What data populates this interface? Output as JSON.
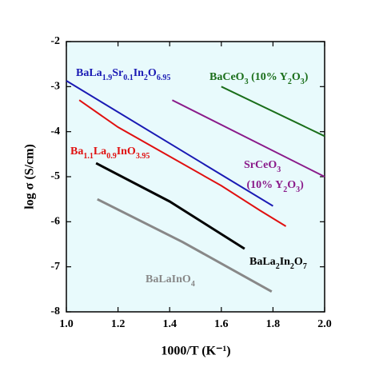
{
  "chart_data": {
    "type": "line",
    "xlabel": "1000/T (K⁻¹)",
    "ylabel": "log σ (S/cm)",
    "xlim": [
      1.0,
      2.0
    ],
    "xticks": [
      {
        "value": 1.0,
        "label": "1.0"
      },
      {
        "value": 1.2,
        "label": "1.2"
      },
      {
        "value": 1.4,
        "label": "1.4"
      },
      {
        "value": 1.6,
        "label": "1.6"
      },
      {
        "value": 1.8,
        "label": "1.8"
      },
      {
        "value": 2.0,
        "label": "2.0"
      }
    ],
    "ylim": [
      -8,
      -2
    ],
    "yticks": [
      -8,
      -7,
      -6,
      -5,
      -4,
      -3,
      -2
    ],
    "series": [
      {
        "name": "BaLa1.9Sr0.1In2O6.95",
        "color": "#1a1ab4",
        "x": [
          1.0,
          1.8
        ],
        "values": [
          -2.87,
          -5.65
        ]
      },
      {
        "name": "Ba1.1La0.9InO3.95",
        "color": "#e01010",
        "x": [
          1.05,
          1.2,
          1.4,
          1.6,
          1.75,
          1.85
        ],
        "values": [
          -3.3,
          -3.9,
          -4.55,
          -5.2,
          -5.75,
          -6.1
        ]
      },
      {
        "name": "BaCeO3 (10% Y2O3)",
        "color": "#1a6e1a",
        "x": [
          1.6,
          2.0
        ],
        "values": [
          -3.0,
          -4.1
        ]
      },
      {
        "name": "SrCeO3 (10% Y2O3)",
        "color": "#8a1a8a",
        "x": [
          1.41,
          2.0
        ],
        "values": [
          -3.3,
          -5.0
        ]
      },
      {
        "name": "BaLa2In2O7",
        "color": "#000000",
        "x": [
          1.115,
          1.4,
          1.69
        ],
        "values": [
          -4.7,
          -5.55,
          -6.6
        ]
      },
      {
        "name": "BaLaInO4",
        "color": "#888888",
        "x": [
          1.12,
          1.45,
          1.795
        ],
        "values": [
          -5.5,
          -6.45,
          -7.55
        ]
      }
    ]
  }
}
